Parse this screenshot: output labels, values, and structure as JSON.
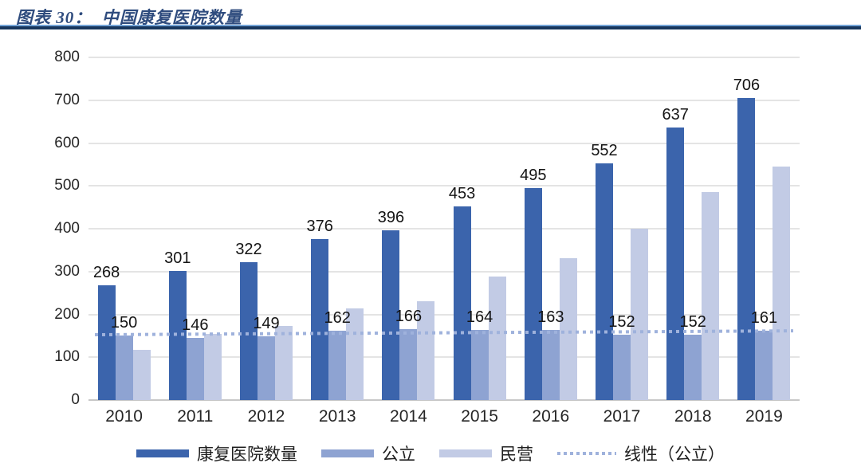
{
  "header": {
    "title": "图表 30：  中国康复医院数量"
  },
  "chart_data": {
    "type": "bar",
    "title": "中国康复医院数量",
    "categories": [
      "2010",
      "2011",
      "2012",
      "2013",
      "2014",
      "2015",
      "2016",
      "2017",
      "2018",
      "2019"
    ],
    "series": [
      {
        "key": "total",
        "name": "康复医院数量",
        "color": "#3B64AC",
        "show_labels": true,
        "values": [
          268,
          301,
          322,
          376,
          396,
          453,
          495,
          552,
          637,
          706
        ]
      },
      {
        "key": "public",
        "name": "公立",
        "color": "#8EA3D2",
        "show_labels": true,
        "values": [
          150,
          146,
          149,
          162,
          166,
          164,
          163,
          152,
          152,
          161
        ]
      },
      {
        "key": "private",
        "name": "民营",
        "color": "#C2CBE5",
        "show_labels": false,
        "values": [
          118,
          155,
          173,
          214,
          230,
          289,
          332,
          400,
          485,
          545
        ]
      }
    ],
    "trendline": {
      "key": "trend-public",
      "name": "线性（公立）",
      "color": "#9FB2DC",
      "start": 152,
      "end": 161
    },
    "xlabel": "",
    "ylabel": "",
    "ylim": [
      0,
      800
    ],
    "yticks": [
      0,
      100,
      200,
      300,
      400,
      500,
      600,
      700,
      800
    ],
    "grid": true,
    "legend_position": "bottom"
  }
}
